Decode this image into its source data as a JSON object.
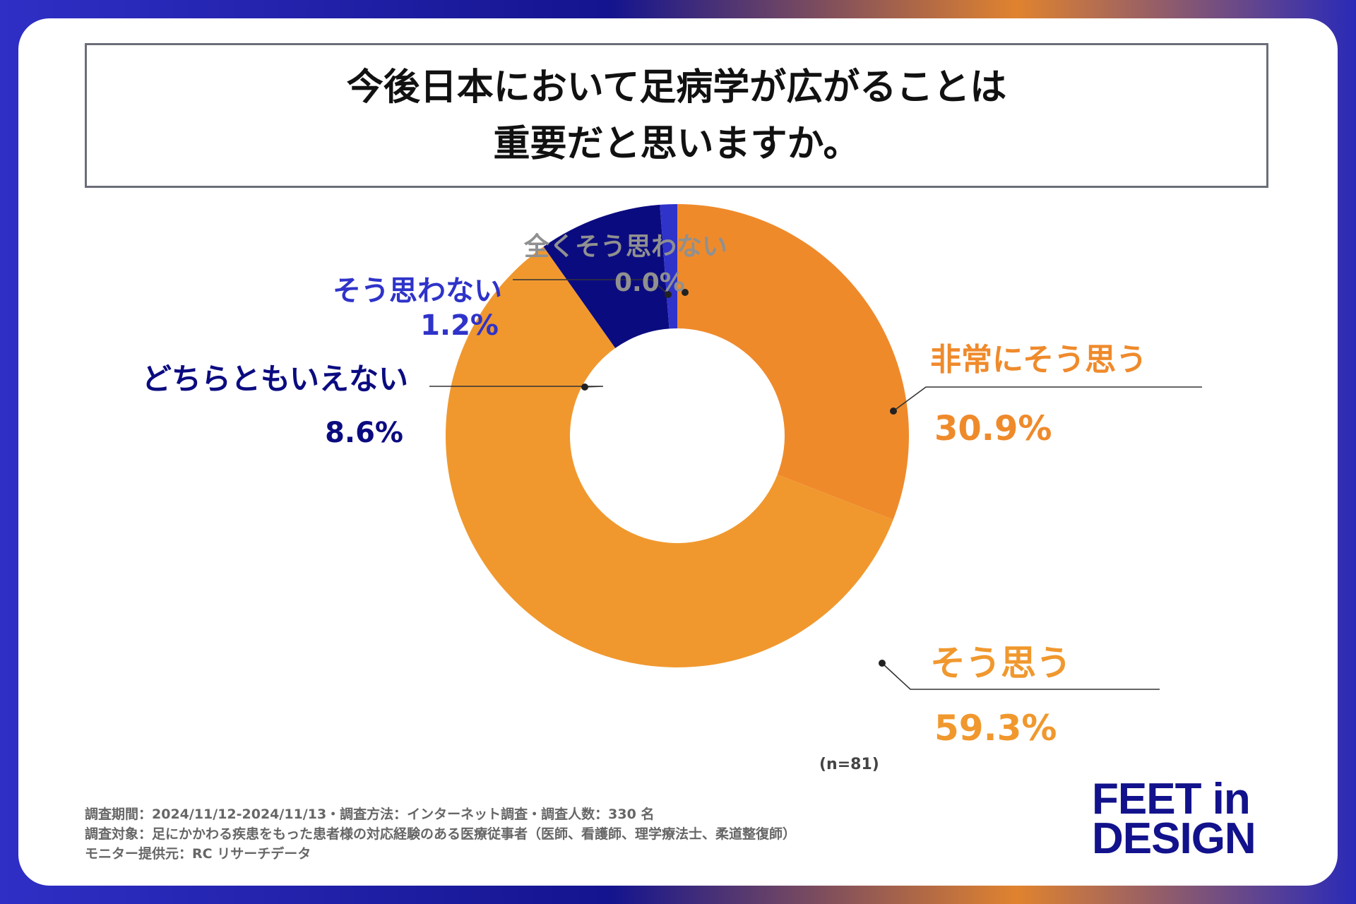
{
  "title": {
    "line1": "今後日本において足病学が広がることは",
    "line2": "重要だと思いますか。"
  },
  "chart_data": {
    "type": "pie",
    "title": "今後日本において足病学が広がることは重要だと思いますか。",
    "donut": true,
    "categories": [
      "非常にそう思う",
      "そう思う",
      "どちらともいえない",
      "そう思わない",
      "全くそう思わない"
    ],
    "values": [
      30.9,
      59.3,
      8.6,
      1.2,
      0.0
    ],
    "value_labels": [
      "30.9%",
      "59.3%",
      "8.6%",
      "1.2%",
      "0.0%"
    ],
    "colors": [
      "#ef8a2b",
      "#f0982e",
      "#0b0b80",
      "#2f33c9",
      "#909090"
    ],
    "label_colors": [
      "#ef8a2b",
      "#f0982e",
      "#0b0b80",
      "#2f33c9",
      "#909090"
    ],
    "sample_size": "(n=81)"
  },
  "footnotes": {
    "line1": "調査期間：2024/11/12-2024/11/13・調査方法：インターネット調査・調査人数：330 名",
    "line2": "調査対象：足にかかわる疾患をもった患者様の対応経験のある医療従事者（医師、看護師、理学療法士、柔道整復師）",
    "line3": "モニター提供元：RC リサーチデータ"
  },
  "logo": {
    "line1": "FEET in",
    "line2": "DESIGN"
  }
}
